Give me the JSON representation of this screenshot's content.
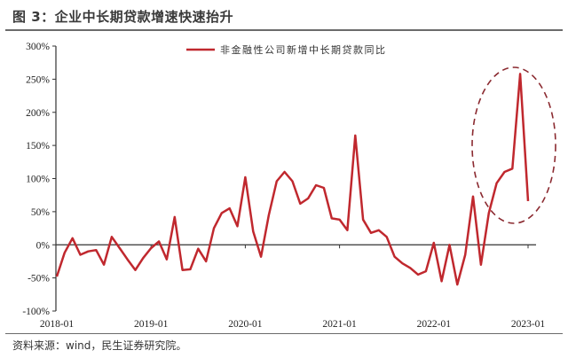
{
  "figure": {
    "title": "图 3：企业中长期贷款增速快速抬升",
    "source": "资料来源：wind，民生证券研究院。"
  },
  "colors": {
    "series": "#c0282e",
    "annotation": "#8b2a30",
    "axis": "#333333"
  },
  "chart_data": {
    "type": "line",
    "title": "企业中长期贷款增速快速抬升",
    "xlabel": "",
    "ylabel": "",
    "ylim": [
      -100,
      300
    ],
    "yticks": [
      "-100%",
      "-50%",
      "0%",
      "50%",
      "100%",
      "150%",
      "200%",
      "250%",
      "300%"
    ],
    "xticks": [
      "2018-01",
      "2019-01",
      "2020-01",
      "2021-01",
      "2022-01",
      "2023-01"
    ],
    "grid": false,
    "legend_position": "top",
    "annotation": "dashed ellipse highlighting late-2022 to 2023-01 surge",
    "x": [
      "2018-01",
      "2018-02",
      "2018-03",
      "2018-04",
      "2018-05",
      "2018-06",
      "2018-07",
      "2018-08",
      "2018-09",
      "2018-10",
      "2018-11",
      "2018-12",
      "2019-01",
      "2019-02",
      "2019-03",
      "2019-04",
      "2019-05",
      "2019-06",
      "2019-07",
      "2019-08",
      "2019-09",
      "2019-10",
      "2019-11",
      "2019-12",
      "2020-01",
      "2020-02",
      "2020-03",
      "2020-04",
      "2020-05",
      "2020-06",
      "2020-07",
      "2020-08",
      "2020-09",
      "2020-10",
      "2020-11",
      "2020-12",
      "2021-01",
      "2021-02",
      "2021-03",
      "2021-04",
      "2021-05",
      "2021-06",
      "2021-07",
      "2021-08",
      "2021-09",
      "2021-10",
      "2021-11",
      "2021-12",
      "2022-01",
      "2022-02",
      "2022-03",
      "2022-04",
      "2022-05",
      "2022-06",
      "2022-07",
      "2022-08",
      "2022-09",
      "2022-10",
      "2022-11",
      "2022-12",
      "2023-01"
    ],
    "series": [
      {
        "name": "非金融性公司新增中长期贷款同比",
        "unit": "%",
        "values": [
          -48,
          -12,
          10,
          -15,
          -10,
          -8,
          -30,
          12,
          -5,
          -22,
          -38,
          -20,
          -5,
          5,
          -22,
          42,
          -38,
          -37,
          -6,
          -25,
          25,
          48,
          55,
          28,
          102,
          20,
          -18,
          45,
          96,
          110,
          96,
          62,
          70,
          90,
          86,
          40,
          38,
          22,
          165,
          38,
          18,
          22,
          12,
          -18,
          -28,
          -35,
          -45,
          -40,
          3,
          -55,
          0,
          -60,
          -15,
          73,
          -30,
          48,
          93,
          110,
          115,
          258,
          66
        ]
      }
    ]
  }
}
